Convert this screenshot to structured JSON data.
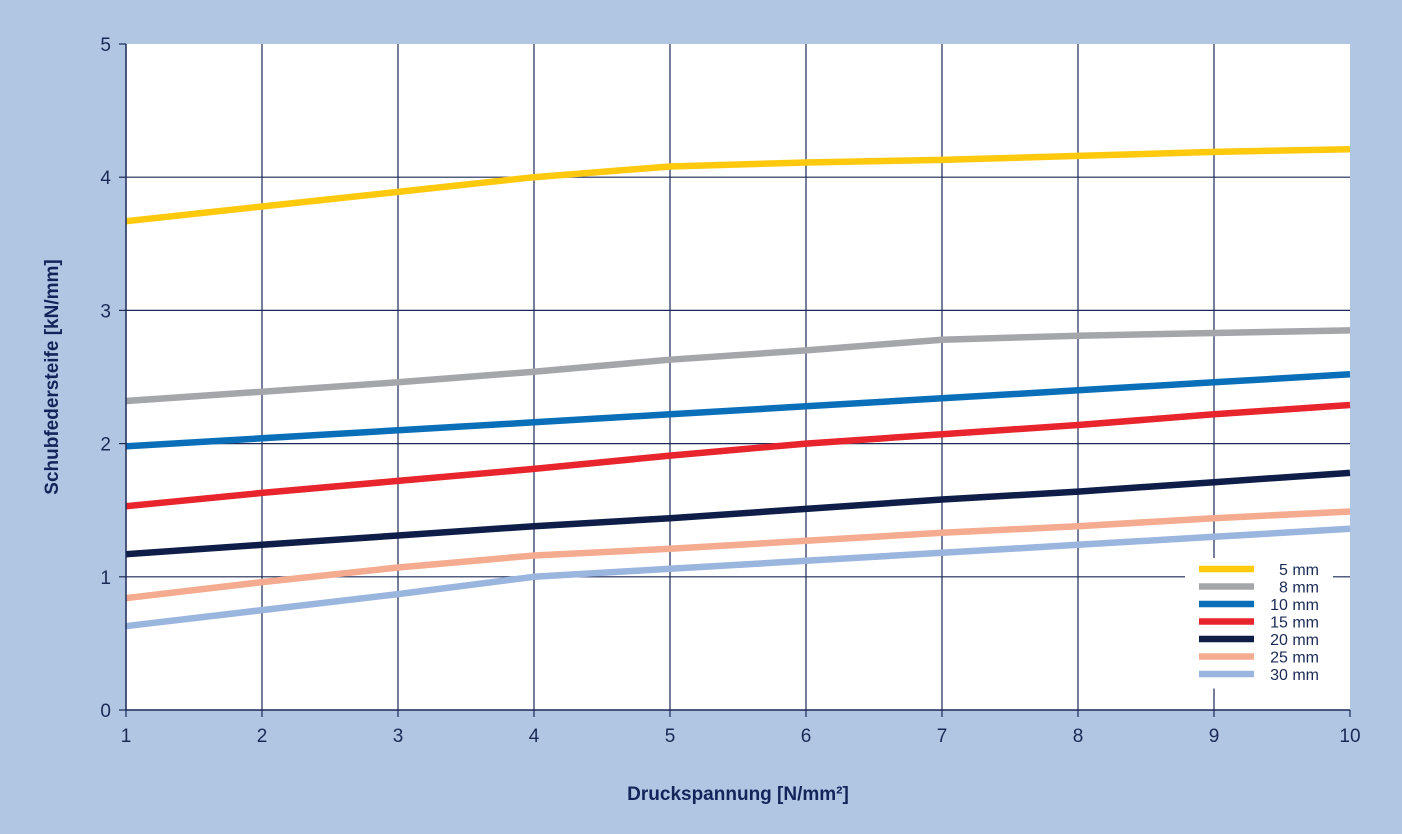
{
  "chart_data": {
    "type": "line",
    "title": "",
    "xlabel": "Druckspannung [N/mm²]",
    "ylabel": "Schubfedersteife [kN/mm]",
    "xlim": [
      1,
      10
    ],
    "ylim": [
      0,
      5
    ],
    "x_ticks": [
      "1",
      "2",
      "3",
      "4",
      "5",
      "6",
      "7",
      "8",
      "9",
      "10"
    ],
    "y_ticks": [
      "0",
      "1",
      "2",
      "3",
      "4",
      "5"
    ],
    "grid": true,
    "legend_position": "bottom-right",
    "x": [
      1,
      2,
      3,
      4,
      5,
      6,
      7,
      8,
      9,
      10
    ],
    "series": [
      {
        "name": "5 mm",
        "color": "#ffc90e",
        "values": [
          3.67,
          3.78,
          3.89,
          4.0,
          4.08,
          4.11,
          4.13,
          4.16,
          4.19,
          4.21
        ]
      },
      {
        "name": "8 mm",
        "color": "#a5a6aa",
        "values": [
          2.32,
          2.39,
          2.46,
          2.54,
          2.63,
          2.7,
          2.78,
          2.81,
          2.83,
          2.85
        ]
      },
      {
        "name": "10 mm",
        "color": "#0a6fb8",
        "values": [
          1.98,
          2.04,
          2.1,
          2.16,
          2.22,
          2.28,
          2.34,
          2.4,
          2.46,
          2.52
        ]
      },
      {
        "name": "15 mm",
        "color": "#e8252c",
        "values": [
          1.53,
          1.63,
          1.72,
          1.81,
          1.91,
          2.0,
          2.07,
          2.14,
          2.22,
          2.29
        ]
      },
      {
        "name": "20 mm",
        "color": "#0f1e48",
        "values": [
          1.17,
          1.24,
          1.31,
          1.38,
          1.44,
          1.51,
          1.58,
          1.64,
          1.71,
          1.78
        ]
      },
      {
        "name": "25 mm",
        "color": "#f4ab8f",
        "values": [
          0.84,
          0.96,
          1.07,
          1.16,
          1.21,
          1.27,
          1.33,
          1.38,
          1.44,
          1.49
        ]
      },
      {
        "name": "30 mm",
        "color": "#9ab5de",
        "values": [
          0.63,
          0.75,
          0.87,
          1.0,
          1.06,
          1.12,
          1.18,
          1.24,
          1.3,
          1.36
        ]
      }
    ]
  }
}
